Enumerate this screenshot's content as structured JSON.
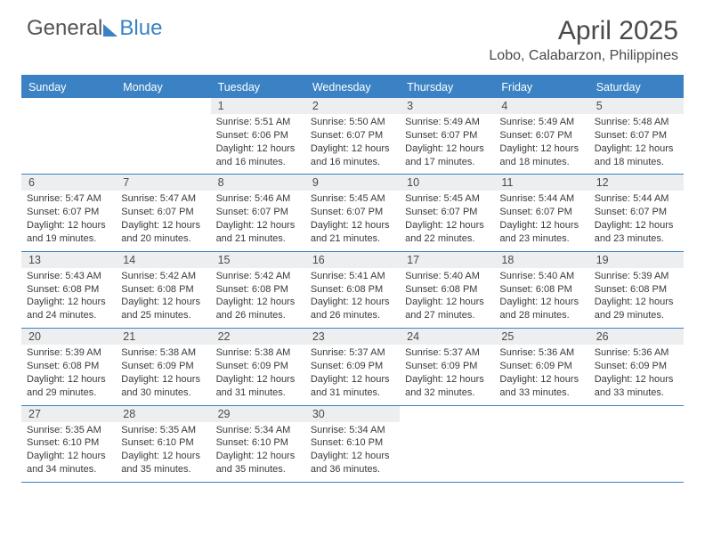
{
  "logo": {
    "text1": "General",
    "text2": "Blue"
  },
  "title": "April 2025",
  "location": "Lobo, Calabarzon, Philippines",
  "colors": {
    "accent": "#3b82c4",
    "header_bg": "#3b82c4",
    "header_text": "#ffffff",
    "daynum_bg": "#eceef0",
    "text": "#3a3a3a",
    "border": "#3b82c4"
  },
  "fonts": {
    "title_size_pt": 30,
    "location_size_pt": 16,
    "dayhead_size_pt": 12.5,
    "body_size_pt": 11
  },
  "day_names": [
    "Sunday",
    "Monday",
    "Tuesday",
    "Wednesday",
    "Thursday",
    "Friday",
    "Saturday"
  ],
  "weeks": [
    [
      {
        "empty": true
      },
      {
        "empty": true
      },
      {
        "n": "1",
        "sr": "5:51 AM",
        "ss": "6:06 PM",
        "dl": "12 hours and 16 minutes."
      },
      {
        "n": "2",
        "sr": "5:50 AM",
        "ss": "6:07 PM",
        "dl": "12 hours and 16 minutes."
      },
      {
        "n": "3",
        "sr": "5:49 AM",
        "ss": "6:07 PM",
        "dl": "12 hours and 17 minutes."
      },
      {
        "n": "4",
        "sr": "5:49 AM",
        "ss": "6:07 PM",
        "dl": "12 hours and 18 minutes."
      },
      {
        "n": "5",
        "sr": "5:48 AM",
        "ss": "6:07 PM",
        "dl": "12 hours and 18 minutes."
      }
    ],
    [
      {
        "n": "6",
        "sr": "5:47 AM",
        "ss": "6:07 PM",
        "dl": "12 hours and 19 minutes."
      },
      {
        "n": "7",
        "sr": "5:47 AM",
        "ss": "6:07 PM",
        "dl": "12 hours and 20 minutes."
      },
      {
        "n": "8",
        "sr": "5:46 AM",
        "ss": "6:07 PM",
        "dl": "12 hours and 21 minutes."
      },
      {
        "n": "9",
        "sr": "5:45 AM",
        "ss": "6:07 PM",
        "dl": "12 hours and 21 minutes."
      },
      {
        "n": "10",
        "sr": "5:45 AM",
        "ss": "6:07 PM",
        "dl": "12 hours and 22 minutes."
      },
      {
        "n": "11",
        "sr": "5:44 AM",
        "ss": "6:07 PM",
        "dl": "12 hours and 23 minutes."
      },
      {
        "n": "12",
        "sr": "5:44 AM",
        "ss": "6:07 PM",
        "dl": "12 hours and 23 minutes."
      }
    ],
    [
      {
        "n": "13",
        "sr": "5:43 AM",
        "ss": "6:08 PM",
        "dl": "12 hours and 24 minutes."
      },
      {
        "n": "14",
        "sr": "5:42 AM",
        "ss": "6:08 PM",
        "dl": "12 hours and 25 minutes."
      },
      {
        "n": "15",
        "sr": "5:42 AM",
        "ss": "6:08 PM",
        "dl": "12 hours and 26 minutes."
      },
      {
        "n": "16",
        "sr": "5:41 AM",
        "ss": "6:08 PM",
        "dl": "12 hours and 26 minutes."
      },
      {
        "n": "17",
        "sr": "5:40 AM",
        "ss": "6:08 PM",
        "dl": "12 hours and 27 minutes."
      },
      {
        "n": "18",
        "sr": "5:40 AM",
        "ss": "6:08 PM",
        "dl": "12 hours and 28 minutes."
      },
      {
        "n": "19",
        "sr": "5:39 AM",
        "ss": "6:08 PM",
        "dl": "12 hours and 29 minutes."
      }
    ],
    [
      {
        "n": "20",
        "sr": "5:39 AM",
        "ss": "6:08 PM",
        "dl": "12 hours and 29 minutes."
      },
      {
        "n": "21",
        "sr": "5:38 AM",
        "ss": "6:09 PM",
        "dl": "12 hours and 30 minutes."
      },
      {
        "n": "22",
        "sr": "5:38 AM",
        "ss": "6:09 PM",
        "dl": "12 hours and 31 minutes."
      },
      {
        "n": "23",
        "sr": "5:37 AM",
        "ss": "6:09 PM",
        "dl": "12 hours and 31 minutes."
      },
      {
        "n": "24",
        "sr": "5:37 AM",
        "ss": "6:09 PM",
        "dl": "12 hours and 32 minutes."
      },
      {
        "n": "25",
        "sr": "5:36 AM",
        "ss": "6:09 PM",
        "dl": "12 hours and 33 minutes."
      },
      {
        "n": "26",
        "sr": "5:36 AM",
        "ss": "6:09 PM",
        "dl": "12 hours and 33 minutes."
      }
    ],
    [
      {
        "n": "27",
        "sr": "5:35 AM",
        "ss": "6:10 PM",
        "dl": "12 hours and 34 minutes."
      },
      {
        "n": "28",
        "sr": "5:35 AM",
        "ss": "6:10 PM",
        "dl": "12 hours and 35 minutes."
      },
      {
        "n": "29",
        "sr": "5:34 AM",
        "ss": "6:10 PM",
        "dl": "12 hours and 35 minutes."
      },
      {
        "n": "30",
        "sr": "5:34 AM",
        "ss": "6:10 PM",
        "dl": "12 hours and 36 minutes."
      },
      {
        "empty": true
      },
      {
        "empty": true
      },
      {
        "empty": true
      }
    ]
  ],
  "labels": {
    "sunrise": "Sunrise:",
    "sunset": "Sunset:",
    "daylight": "Daylight:"
  }
}
